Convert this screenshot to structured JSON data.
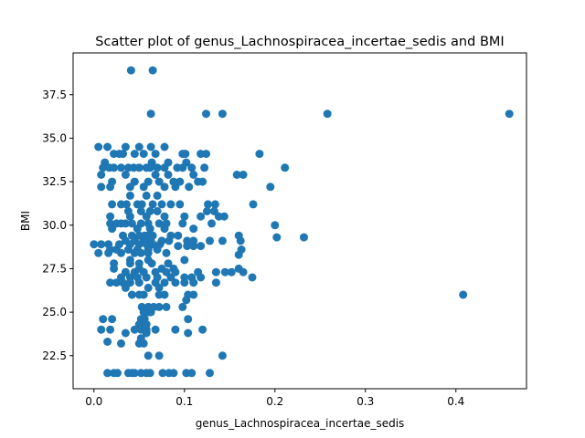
{
  "chart_data": {
    "type": "scatter",
    "title": "Scatter plot of genus_Lachnospiracea_incertae_sedis and BMI",
    "xlabel": "genus_Lachnospiracea_incertae_sedis",
    "ylabel": "BMI",
    "xlim": [
      -0.023,
      0.478
    ],
    "ylim": [
      20.6,
      39.9
    ],
    "xticks": [
      {
        "value": 0.0,
        "label": "0.0"
      },
      {
        "value": 0.1,
        "label": "0.1"
      },
      {
        "value": 0.2,
        "label": "0.2"
      },
      {
        "value": 0.3,
        "label": "0.3"
      },
      {
        "value": 0.4,
        "label": "0.4"
      }
    ],
    "yticks": [
      {
        "value": 22.5,
        "label": "22.5"
      },
      {
        "value": 25.0,
        "label": "25.0"
      },
      {
        "value": 27.5,
        "label": "27.5"
      },
      {
        "value": 30.0,
        "label": "30.0"
      },
      {
        "value": 32.5,
        "label": "32.5"
      },
      {
        "value": 35.0,
        "label": "35.0"
      },
      {
        "value": 37.5,
        "label": "37.5"
      }
    ],
    "grid": false,
    "marker_color": "#1f77b4",
    "points": [
      [
        0.041,
        38.9
      ],
      [
        0.065,
        38.9
      ],
      [
        0.063,
        36.4
      ],
      [
        0.124,
        36.4
      ],
      [
        0.142,
        36.4
      ],
      [
        0.258,
        36.4
      ],
      [
        0.459,
        36.4
      ],
      [
        0.005,
        34.5
      ],
      [
        0.015,
        34.5
      ],
      [
        0.035,
        34.5
      ],
      [
        0.05,
        34.5
      ],
      [
        0.063,
        34.5
      ],
      [
        0.078,
        34.5
      ],
      [
        0.022,
        34.1
      ],
      [
        0.028,
        34.1
      ],
      [
        0.032,
        34.1
      ],
      [
        0.045,
        34.1
      ],
      [
        0.055,
        34.1
      ],
      [
        0.068,
        34.1
      ],
      [
        0.098,
        34.1
      ],
      [
        0.101,
        34.1
      ],
      [
        0.118,
        34.1
      ],
      [
        0.124,
        34.1
      ],
      [
        0.183,
        34.1
      ],
      [
        0.012,
        33.6
      ],
      [
        0.064,
        33.6
      ],
      [
        0.082,
        33.6
      ],
      [
        0.102,
        33.6
      ],
      [
        0.01,
        33.3
      ],
      [
        0.017,
        33.3
      ],
      [
        0.022,
        33.3
      ],
      [
        0.03,
        33.3
      ],
      [
        0.038,
        33.3
      ],
      [
        0.044,
        33.3
      ],
      [
        0.05,
        33.3
      ],
      [
        0.058,
        33.3
      ],
      [
        0.062,
        33.3
      ],
      [
        0.07,
        33.3
      ],
      [
        0.078,
        33.3
      ],
      [
        0.092,
        33.3
      ],
      [
        0.098,
        33.3
      ],
      [
        0.108,
        33.3
      ],
      [
        0.122,
        33.3
      ],
      [
        0.211,
        33.3
      ],
      [
        0.008,
        32.9
      ],
      [
        0.035,
        32.9
      ],
      [
        0.068,
        32.9
      ],
      [
        0.082,
        32.9
      ],
      [
        0.11,
        32.9
      ],
      [
        0.158,
        32.9
      ],
      [
        0.165,
        32.9
      ],
      [
        0.02,
        32.5
      ],
      [
        0.045,
        32.5
      ],
      [
        0.06,
        32.5
      ],
      [
        0.072,
        32.5
      ],
      [
        0.088,
        32.5
      ],
      [
        0.095,
        32.5
      ],
      [
        0.115,
        32.5
      ],
      [
        0.12,
        32.5
      ],
      [
        0.008,
        32.2
      ],
      [
        0.018,
        32.2
      ],
      [
        0.04,
        32.2
      ],
      [
        0.055,
        32.2
      ],
      [
        0.078,
        32.2
      ],
      [
        0.09,
        32.2
      ],
      [
        0.105,
        32.2
      ],
      [
        0.195,
        32.2
      ],
      [
        0.04,
        31.7
      ],
      [
        0.058,
        31.7
      ],
      [
        0.07,
        31.7
      ],
      [
        0.02,
        31.2
      ],
      [
        0.03,
        31.2
      ],
      [
        0.036,
        31.2
      ],
      [
        0.048,
        31.2
      ],
      [
        0.053,
        31.2
      ],
      [
        0.065,
        31.2
      ],
      [
        0.075,
        31.2
      ],
      [
        0.085,
        31.2
      ],
      [
        0.095,
        31.2
      ],
      [
        0.126,
        31.2
      ],
      [
        0.134,
        31.2
      ],
      [
        0.176,
        31.2
      ],
      [
        0.038,
        30.8
      ],
      [
        0.052,
        30.8
      ],
      [
        0.062,
        30.8
      ],
      [
        0.07,
        30.8
      ],
      [
        0.125,
        30.8
      ],
      [
        0.133,
        30.8
      ],
      [
        0.018,
        30.5
      ],
      [
        0.04,
        30.5
      ],
      [
        0.058,
        30.5
      ],
      [
        0.078,
        30.5
      ],
      [
        0.1,
        30.5
      ],
      [
        0.118,
        30.5
      ],
      [
        0.138,
        30.5
      ],
      [
        0.144,
        30.5
      ],
      [
        0.018,
        30.1
      ],
      [
        0.025,
        30.1
      ],
      [
        0.03,
        30.1
      ],
      [
        0.035,
        30.1
      ],
      [
        0.042,
        30.1
      ],
      [
        0.052,
        30.1
      ],
      [
        0.06,
        30.1
      ],
      [
        0.072,
        30.1
      ],
      [
        0.08,
        30.1
      ],
      [
        0.098,
        30.1
      ],
      [
        0.13,
        30.1
      ],
      [
        0.2,
        30.0
      ],
      [
        0.02,
        29.8
      ],
      [
        0.048,
        29.8
      ],
      [
        0.062,
        29.8
      ],
      [
        0.078,
        29.8
      ],
      [
        0.11,
        29.8
      ],
      [
        0.032,
        29.4
      ],
      [
        0.042,
        29.4
      ],
      [
        0.05,
        29.4
      ],
      [
        0.056,
        29.4
      ],
      [
        0.06,
        29.4
      ],
      [
        0.065,
        29.4
      ],
      [
        0.085,
        29.4
      ],
      [
        0.093,
        29.4
      ],
      [
        0.16,
        29.4
      ],
      [
        0.202,
        29.3
      ],
      [
        0.232,
        29.3
      ],
      [
        0.035,
        29.1
      ],
      [
        0.045,
        29.1
      ],
      [
        0.055,
        29.1
      ],
      [
        0.063,
        29.1
      ],
      [
        0.075,
        29.1
      ],
      [
        0.083,
        29.1
      ],
      [
        0.103,
        29.1
      ],
      [
        0.11,
        29.1
      ],
      [
        0.128,
        29.1
      ],
      [
        0.142,
        29.1
      ],
      [
        0.162,
        29.1
      ],
      [
        0.0,
        28.9
      ],
      [
        0.008,
        28.9
      ],
      [
        0.016,
        28.9
      ],
      [
        0.028,
        28.9
      ],
      [
        0.04,
        28.9
      ],
      [
        0.05,
        28.9
      ],
      [
        0.058,
        28.9
      ],
      [
        0.065,
        28.9
      ],
      [
        0.073,
        28.9
      ],
      [
        0.093,
        28.8
      ],
      [
        0.103,
        28.8
      ],
      [
        0.11,
        28.8
      ],
      [
        0.118,
        28.8
      ],
      [
        0.018,
        28.6
      ],
      [
        0.025,
        28.6
      ],
      [
        0.038,
        28.6
      ],
      [
        0.048,
        28.6
      ],
      [
        0.06,
        28.6
      ],
      [
        0.07,
        28.6
      ],
      [
        0.163,
        28.6
      ],
      [
        0.005,
        28.4
      ],
      [
        0.016,
        28.4
      ],
      [
        0.03,
        28.4
      ],
      [
        0.045,
        28.4
      ],
      [
        0.052,
        28.4
      ],
      [
        0.06,
        28.4
      ],
      [
        0.08,
        28.4
      ],
      [
        0.16,
        28.3
      ],
      [
        0.04,
        28.0
      ],
      [
        0.06,
        28.0
      ],
      [
        0.1,
        28.0
      ],
      [
        0.022,
        27.8
      ],
      [
        0.04,
        27.8
      ],
      [
        0.05,
        27.8
      ],
      [
        0.064,
        27.8
      ],
      [
        0.082,
        27.8
      ],
      [
        0.022,
        27.5
      ],
      [
        0.05,
        27.5
      ],
      [
        0.075,
        27.5
      ],
      [
        0.088,
        27.5
      ],
      [
        0.16,
        27.5
      ],
      [
        0.035,
        27.3
      ],
      [
        0.045,
        27.3
      ],
      [
        0.055,
        27.3
      ],
      [
        0.068,
        27.3
      ],
      [
        0.08,
        27.3
      ],
      [
        0.09,
        27.3
      ],
      [
        0.115,
        27.3
      ],
      [
        0.135,
        27.3
      ],
      [
        0.145,
        27.3
      ],
      [
        0.152,
        27.3
      ],
      [
        0.165,
        27.3
      ],
      [
        0.03,
        27.0
      ],
      [
        0.04,
        27.0
      ],
      [
        0.048,
        27.0
      ],
      [
        0.058,
        27.0
      ],
      [
        0.07,
        27.0
      ],
      [
        0.085,
        27.0
      ],
      [
        0.1,
        27.0
      ],
      [
        0.108,
        27.0
      ],
      [
        0.118,
        27.0
      ],
      [
        0.175,
        27.0
      ],
      [
        0.018,
        26.7
      ],
      [
        0.025,
        26.7
      ],
      [
        0.032,
        26.7
      ],
      [
        0.04,
        26.7
      ],
      [
        0.05,
        26.7
      ],
      [
        0.068,
        26.7
      ],
      [
        0.078,
        26.7
      ],
      [
        0.09,
        26.7
      ],
      [
        0.1,
        26.7
      ],
      [
        0.11,
        26.7
      ],
      [
        0.135,
        26.7
      ],
      [
        0.035,
        26.4
      ],
      [
        0.06,
        26.4
      ],
      [
        0.072,
        26.4
      ],
      [
        0.042,
        26.0
      ],
      [
        0.05,
        26.0
      ],
      [
        0.055,
        26.0
      ],
      [
        0.072,
        26.0
      ],
      [
        0.078,
        26.0
      ],
      [
        0.104,
        26.0
      ],
      [
        0.11,
        26.0
      ],
      [
        0.408,
        26.0
      ],
      [
        0.102,
        25.7
      ],
      [
        0.053,
        25.3
      ],
      [
        0.06,
        25.3
      ],
      [
        0.066,
        25.3
      ],
      [
        0.072,
        25.3
      ],
      [
        0.08,
        25.3
      ],
      [
        0.098,
        25.3
      ],
      [
        0.055,
        25.0
      ],
      [
        0.06,
        25.0
      ],
      [
        0.063,
        25.0
      ],
      [
        0.01,
        24.6
      ],
      [
        0.02,
        24.6
      ],
      [
        0.052,
        24.6
      ],
      [
        0.056,
        24.6
      ],
      [
        0.104,
        24.6
      ],
      [
        0.05,
        24.3
      ],
      [
        0.058,
        24.3
      ],
      [
        0.008,
        24.0
      ],
      [
        0.018,
        24.0
      ],
      [
        0.045,
        24.0
      ],
      [
        0.052,
        24.0
      ],
      [
        0.058,
        24.0
      ],
      [
        0.068,
        24.0
      ],
      [
        0.09,
        24.0
      ],
      [
        0.12,
        24.0
      ],
      [
        0.035,
        23.8
      ],
      [
        0.058,
        23.8
      ],
      [
        0.104,
        23.8
      ],
      [
        0.052,
        23.5
      ],
      [
        0.015,
        23.3
      ],
      [
        0.03,
        23.2
      ],
      [
        0.05,
        23.2
      ],
      [
        0.055,
        23.2
      ],
      [
        0.06,
        22.5
      ],
      [
        0.072,
        22.5
      ],
      [
        0.142,
        22.5
      ],
      [
        0.015,
        21.5
      ],
      [
        0.022,
        21.5
      ],
      [
        0.026,
        21.5
      ],
      [
        0.038,
        21.5
      ],
      [
        0.042,
        21.5
      ],
      [
        0.045,
        21.5
      ],
      [
        0.052,
        21.5
      ],
      [
        0.058,
        21.5
      ],
      [
        0.062,
        21.5
      ],
      [
        0.076,
        21.5
      ],
      [
        0.083,
        21.5
      ],
      [
        0.088,
        21.5
      ],
      [
        0.102,
        21.5
      ],
      [
        0.108,
        21.5
      ],
      [
        0.128,
        21.5
      ]
    ]
  }
}
